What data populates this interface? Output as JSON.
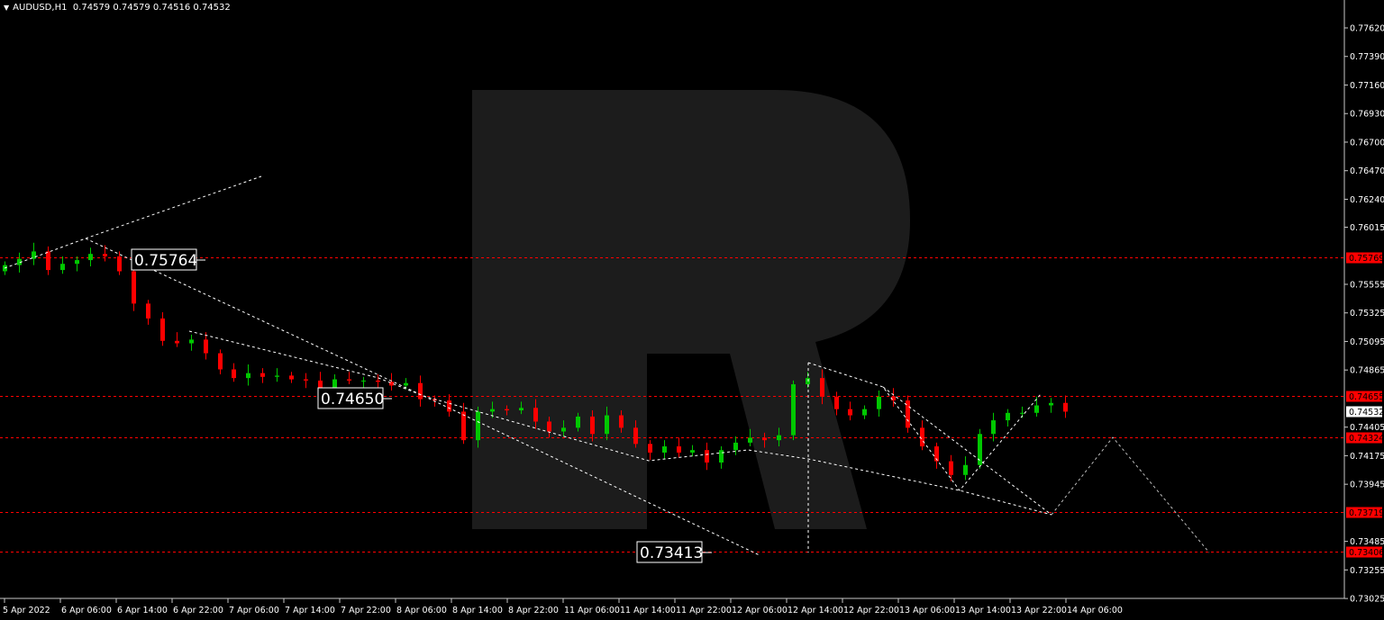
{
  "header": {
    "symbol": "AUDUSD,H1",
    "ohlc": "0.74579 0.74579 0.74516 0.74532"
  },
  "colors": {
    "bull": "#00c800",
    "bear": "#ff0000",
    "level_line": "#ff0000",
    "pattern_line": "#ffffff",
    "watermark": "#1c1c1c"
  },
  "chart_data": {
    "type": "candlestick",
    "title": "AUDUSD,H1",
    "ylim": [
      0.73025,
      0.7762
    ],
    "y_ticks": [
      "0.77620",
      "0.77390",
      "0.77160",
      "0.76930",
      "0.76700",
      "0.76470",
      "0.76240",
      "0.76015",
      "0.75555",
      "0.75325",
      "0.75095",
      "0.74865",
      "0.74405",
      "0.74175",
      "0.73945",
      "0.73485",
      "0.73255",
      "0.73025"
    ],
    "x_ticks": [
      "5 Apr 2022",
      "6 Apr 06:00",
      "6 Apr 14:00",
      "6 Apr 22:00",
      "7 Apr 06:00",
      "7 Apr 14:00",
      "7 Apr 22:00",
      "8 Apr 06:00",
      "8 Apr 14:00",
      "8 Apr 22:00",
      "11 Apr 06:00",
      "11 Apr 14:00",
      "11 Apr 22:00",
      "12 Apr 06:00",
      "12 Apr 14:00",
      "12 Apr 22:00",
      "13 Apr 06:00",
      "13 Apr 14:00",
      "13 Apr 22:00",
      "14 Apr 06:00"
    ],
    "first_open": 0.7566,
    "closes": [
      0.7571,
      0.7576,
      0.7582,
      0.7567,
      0.7572,
      0.7575,
      0.758,
      0.7578,
      0.7566,
      0.754,
      0.7528,
      0.751,
      0.7508,
      0.7511,
      0.75,
      0.7487,
      0.748,
      0.7484,
      0.7481,
      0.7482,
      0.7479,
      0.7478,
      0.7472,
      0.7479,
      0.7478,
      0.7478,
      0.7477,
      0.7474,
      0.7476,
      0.7463,
      0.7462,
      0.7453,
      0.743,
      0.7453,
      0.7455,
      0.7454,
      0.7456,
      0.7445,
      0.7437,
      0.744,
      0.7449,
      0.7435,
      0.745,
      0.744,
      0.7427,
      0.742,
      0.7425,
      0.742,
      0.7422,
      0.7412,
      0.7422,
      0.7428,
      0.7432,
      0.743,
      0.7434,
      0.7475,
      0.748,
      0.7465,
      0.7455,
      0.745,
      0.7455,
      0.7465,
      0.7462,
      0.744,
      0.7425,
      0.7413,
      0.7402,
      0.741,
      0.7435,
      0.7446,
      0.7452,
      0.7452,
      0.7458,
      0.746,
      0.7453
    ],
    "levels": [
      {
        "price": 0.75769,
        "label": "0.75769"
      },
      {
        "price": 0.74655,
        "label": "0.74655"
      },
      {
        "price": 0.74324,
        "label": "0.74324"
      },
      {
        "price": 0.73719,
        "label": "0.73719"
      },
      {
        "price": 0.73406,
        "label": "0.73406"
      }
    ],
    "current_price": "0.74532",
    "annotations": [
      "0.75764",
      "0.74650",
      "0.73413"
    ]
  }
}
